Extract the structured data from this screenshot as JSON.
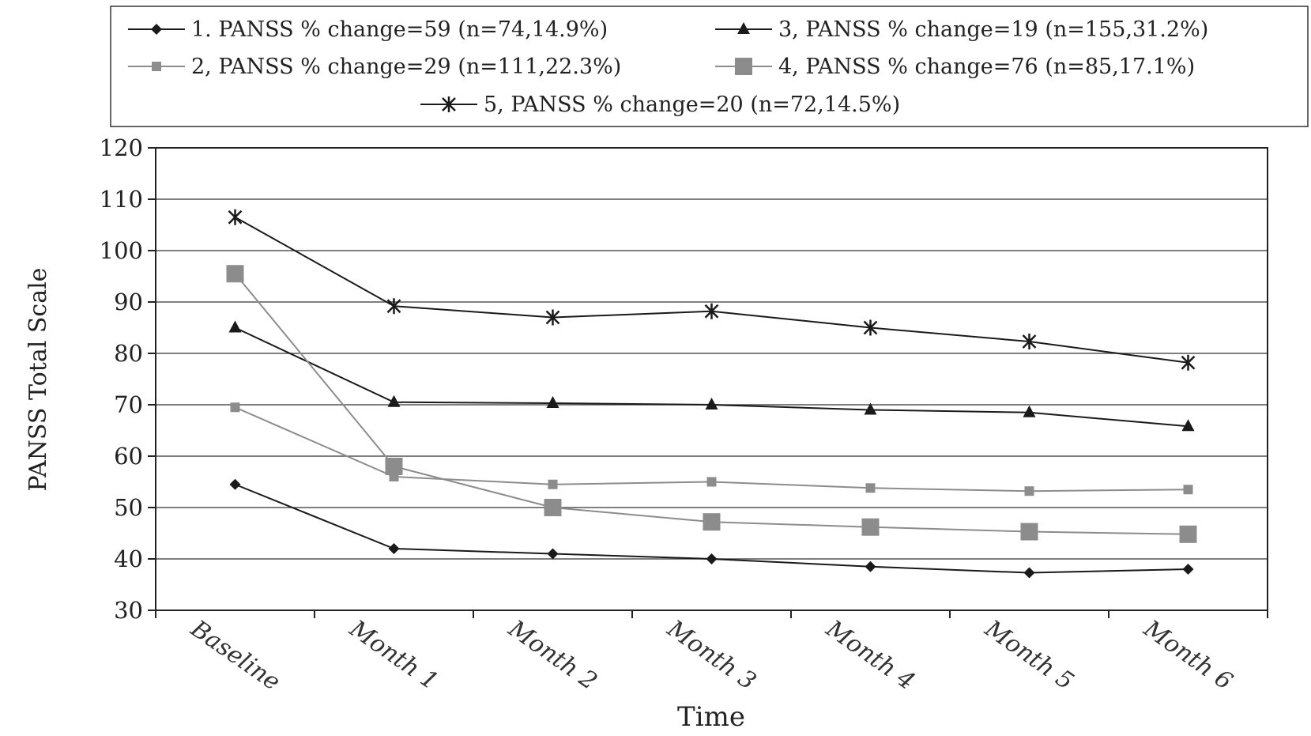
{
  "chart_data": {
    "type": "line",
    "title": "",
    "xlabel": "Time",
    "ylabel": "PANSS Total Scale",
    "ylim": [
      30,
      120
    ],
    "yticks": [
      30,
      40,
      50,
      60,
      70,
      80,
      90,
      100,
      110,
      120
    ],
    "categories": [
      "Baseline",
      "Month 1",
      "Month 2",
      "Month 3",
      "Month 4",
      "Month 5",
      "Month 6"
    ],
    "grid": true,
    "legend_position": "top",
    "series": [
      {
        "name": "1. PANSS % change=59 (n=74,14.9%)",
        "marker": "diamond",
        "color": "#1a1a1a",
        "values": [
          54.5,
          42,
          41,
          40,
          38.5,
          37.3,
          38
        ]
      },
      {
        "name": "2, PANSS % change=29 (n=111,22.3%)",
        "marker": "small-square",
        "color": "#8c8c8c",
        "values": [
          69.5,
          56,
          54.5,
          55,
          53.8,
          53.2,
          53.5
        ]
      },
      {
        "name": "3, PANSS % change=19 (n=155,31.2%)",
        "marker": "triangle",
        "color": "#1a1a1a",
        "values": [
          85,
          70.5,
          70.3,
          70,
          69,
          68.5,
          65.8
        ]
      },
      {
        "name": "4, PANSS % change=76 (n=85,17.1%)",
        "marker": "large-square",
        "color": "#8c8c8c",
        "values": [
          95.5,
          58,
          50,
          47.2,
          46.2,
          45.3,
          44.8
        ]
      },
      {
        "name": "5, PANSS % change=20 (n=72,14.5%)",
        "marker": "star",
        "color": "#1a1a1a",
        "values": [
          106.5,
          89.2,
          87,
          88.2,
          85,
          82.3,
          78.2
        ]
      }
    ]
  }
}
